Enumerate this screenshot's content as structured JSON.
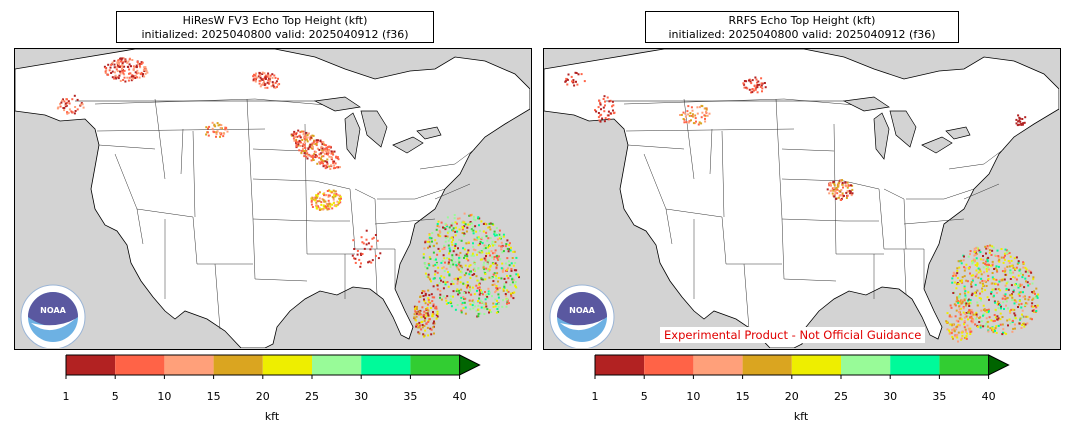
{
  "panels": [
    {
      "id": "hiresw",
      "title_line1": "HiResW FV3 Echo Top Height (kft)",
      "title_line2": "initialized: 2025040800 valid: 2025040912 (f36)",
      "logo_text": "NOAA",
      "disclaimer": ""
    },
    {
      "id": "rrfs",
      "title_line1": "RRFS Echo Top Height (kft)",
      "title_line2": "initialized: 2025040800 valid: 2025040912 (f36)",
      "logo_text": "NOAA",
      "disclaimer": "Experimental Product - Not Official Guidance"
    }
  ],
  "colorbar": {
    "unit": "kft",
    "ticks": [
      "1",
      "5",
      "10",
      "15",
      "20",
      "25",
      "30",
      "35",
      "40"
    ],
    "colors": [
      "#b22222",
      "#ff6347",
      "#ffa07a",
      "#daa520",
      "#eeee00",
      "#98fb98",
      "#00fa9a",
      "#32cd32",
      "#006400"
    ],
    "extend": "max"
  },
  "colors": {
    "land": "#ffffff",
    "ocean": "#d3d3d3",
    "lakes": "#d3d3d3"
  }
}
